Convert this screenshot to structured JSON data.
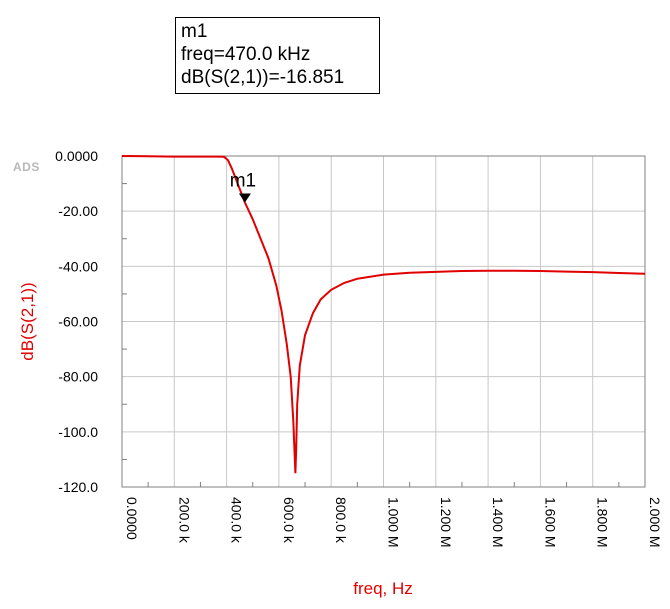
{
  "logo": "ADS",
  "marker_readout": {
    "name": "m1",
    "freq_text": "freq=470.0 kHz",
    "value_text": "dB(S(2,1))=-16.851"
  },
  "chart_data": {
    "type": "line",
    "title": "",
    "xlabel": "freq, Hz",
    "ylabel": "dB(S(2,1))",
    "xlim": [
      0,
      2000000
    ],
    "ylim": [
      -120,
      0
    ],
    "grid": true,
    "x_ticks": [
      0,
      200000,
      400000,
      600000,
      800000,
      1000000,
      1200000,
      1400000,
      1600000,
      1800000,
      2000000
    ],
    "x_tick_labels": [
      "0.0000",
      "200.0 k",
      "400.0 k",
      "600.0 k",
      "800.0 k",
      "1.000 M",
      "1.200 M",
      "1.400 M",
      "1.600 M",
      "1.800 M",
      "2.000 M"
    ],
    "y_ticks": [
      0,
      -20,
      -40,
      -60,
      -80,
      -100,
      -120
    ],
    "y_tick_labels": [
      "0.0000",
      "-20.00",
      "-40.00",
      "-60.00",
      "-80.00",
      "-100.0",
      "-120.0"
    ],
    "line_color": "#e00000",
    "series": [
      {
        "x": [
          0,
          100000,
          200000,
          300000,
          360000,
          390000,
          405000,
          420000,
          440000,
          470000,
          500000,
          530000,
          560000,
          590000,
          610000,
          630000,
          645000,
          655000,
          660000,
          663000,
          666000,
          670000,
          680000,
          700000,
          730000,
          760000,
          800000,
          850000,
          900000,
          1000000,
          1100000,
          1200000,
          1300000,
          1400000,
          1500000,
          1600000,
          1700000,
          1800000,
          1900000,
          2000000
        ],
        "y": [
          0,
          -0.1,
          -0.2,
          -0.2,
          -0.2,
          -0.3,
          -1.5,
          -4.5,
          -9.5,
          -16.85,
          -23,
          -30,
          -37,
          -47,
          -56,
          -68,
          -80,
          -96,
          -108,
          -115,
          -106,
          -90,
          -76,
          -65,
          -57,
          -52,
          -48.5,
          -46,
          -44.5,
          -43,
          -42.3,
          -42,
          -41.7,
          -41.6,
          -41.6,
          -41.7,
          -41.9,
          -42.1,
          -42.4,
          -42.7
        ]
      }
    ],
    "markers": [
      {
        "name": "m1",
        "x": 470000,
        "y": -16.851
      }
    ]
  }
}
